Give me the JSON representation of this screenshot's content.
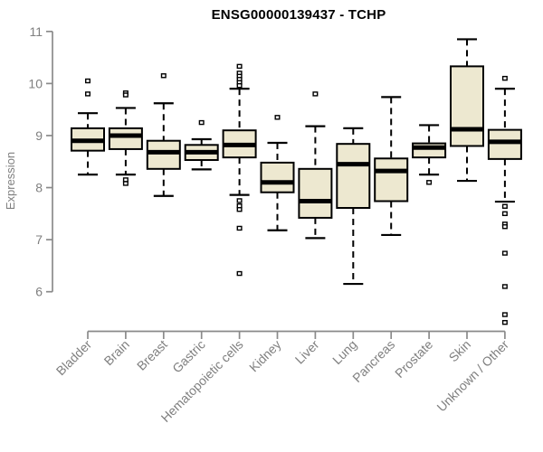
{
  "header": {
    "title": "ENSG00000139437 - TCHP"
  },
  "colors": {
    "background": "#ffffff",
    "box_fill": "#ede8d0",
    "box_stroke": "#000000",
    "median_stroke": "#000000",
    "whisker_stroke": "#000000",
    "outlier_stroke": "#000000",
    "axis_line": "#8a8a8a",
    "axis_text": "#7f7f7f",
    "title_text": "#000000"
  },
  "chart_data": {
    "type": "boxplot",
    "title": "ENSG00000139437 - TCHP",
    "xlabel": "",
    "ylabel": "Expression",
    "ylim": [
      6,
      11
    ],
    "yticks": [
      6,
      7,
      8,
      9,
      10,
      11
    ],
    "grid": false,
    "legend": "none",
    "x_tick_label_rotation_deg": 45,
    "categories": [
      "Bladder",
      "Brain",
      "Breast",
      "Gastric",
      "Hematopoietic cells",
      "Kidney",
      "Liver",
      "Lung",
      "Pancreas",
      "Prostate",
      "Skin",
      "Unknown / Other"
    ],
    "series": [
      {
        "name": "Bladder",
        "low": 8.25,
        "q1": 8.71,
        "median": 8.9,
        "q3": 9.14,
        "high": 9.43,
        "outliers": [
          10.05,
          9.8
        ]
      },
      {
        "name": "Brain",
        "low": 8.25,
        "q1": 8.74,
        "median": 9.0,
        "q3": 9.14,
        "high": 9.53,
        "outliers": [
          9.82,
          9.78,
          8.15,
          8.08
        ]
      },
      {
        "name": "Breast",
        "low": 7.84,
        "q1": 8.36,
        "median": 8.68,
        "q3": 8.9,
        "high": 9.62,
        "outliers": [
          10.15
        ]
      },
      {
        "name": "Gastric",
        "low": 8.35,
        "q1": 8.53,
        "median": 8.68,
        "q3": 8.82,
        "high": 8.93,
        "outliers": [
          9.25
        ]
      },
      {
        "name": "Hematopoietic cells",
        "low": 7.86,
        "q1": 8.58,
        "median": 8.82,
        "q3": 9.1,
        "high": 9.9,
        "outliers": [
          10.33,
          10.2,
          10.14,
          10.08,
          10.02,
          9.96,
          7.75,
          7.65,
          7.58,
          7.22,
          6.35
        ]
      },
      {
        "name": "Kidney",
        "low": 7.18,
        "q1": 7.91,
        "median": 8.1,
        "q3": 8.48,
        "high": 8.86,
        "outliers": [
          9.35
        ]
      },
      {
        "name": "Liver",
        "low": 7.03,
        "q1": 7.42,
        "median": 7.74,
        "q3": 8.36,
        "high": 9.18,
        "outliers": [
          9.8
        ]
      },
      {
        "name": "Lung",
        "low": 6.15,
        "q1": 7.61,
        "median": 8.45,
        "q3": 8.84,
        "high": 9.14,
        "outliers": []
      },
      {
        "name": "Pancreas",
        "low": 7.09,
        "q1": 7.74,
        "median": 8.32,
        "q3": 8.56,
        "high": 9.74,
        "outliers": []
      },
      {
        "name": "Prostate",
        "low": 8.25,
        "q1": 8.58,
        "median": 8.77,
        "q3": 8.85,
        "high": 9.2,
        "outliers": [
          8.1
        ]
      },
      {
        "name": "Skin",
        "low": 8.13,
        "q1": 8.8,
        "median": 9.12,
        "q3": 10.33,
        "high": 10.85,
        "outliers": []
      },
      {
        "name": "Unknown / Other",
        "low": 7.73,
        "q1": 8.55,
        "median": 8.88,
        "q3": 9.11,
        "high": 9.9,
        "outliers": [
          10.1,
          7.64,
          7.5,
          7.3,
          7.25,
          6.74,
          6.1,
          5.56,
          5.41
        ]
      }
    ]
  }
}
